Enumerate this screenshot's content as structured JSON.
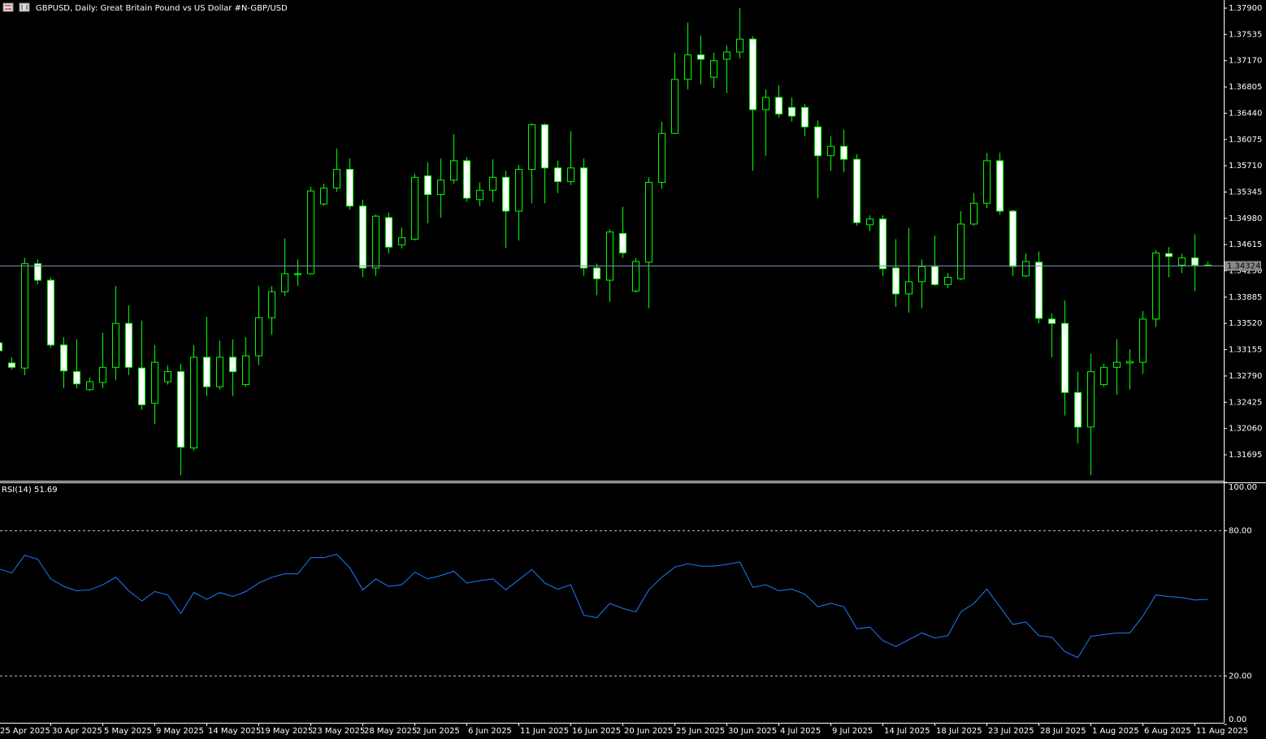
{
  "chart_data": [
    {
      "type": "candlestick",
      "title": "GBPUSD, Daily:  Great Britain Pound vs US Dollar #N-GBP/USD",
      "categories": [
        "25 Apr 2025",
        null,
        null,
        null,
        "30 Apr 2025",
        null,
        null,
        null,
        "5 May 2025",
        null,
        null,
        null,
        "9 May 2025",
        null,
        null,
        null,
        "14 May 2025",
        null,
        null,
        null,
        "19 May 2025",
        null,
        null,
        null,
        "23 May 2025",
        null,
        null,
        null,
        "28 May 2025",
        null,
        null,
        null,
        "2 Jun 2025",
        null,
        null,
        null,
        "6 Jun 2025",
        null,
        null,
        null,
        "11 Jun 2025",
        null,
        null,
        null,
        "16 Jun 2025",
        null,
        null,
        null,
        "20 Jun 2025",
        null,
        null,
        null,
        "25 Jun 2025",
        null,
        null,
        null,
        "30 Jun 2025",
        null,
        null,
        null,
        "4 Jul 2025",
        null,
        null,
        null,
        "9 Jul 2025",
        null,
        null,
        null,
        "14 Jul 2025",
        null,
        null,
        null,
        "18 Jul 2025",
        null,
        null,
        null,
        "23 Jul 2025",
        null,
        null,
        null,
        "28 Jul 2025",
        null,
        null,
        null,
        "1 Aug 2025",
        null,
        null,
        null,
        "6 Aug 2025",
        null,
        null,
        null,
        "11 Aug 2025",
        null
      ],
      "open": [
        1.3325,
        1.3297,
        1.329,
        1.3435,
        1.3412,
        1.3322,
        1.3285,
        1.326,
        1.327,
        1.3291,
        1.3352,
        1.329,
        1.3241,
        1.3271,
        1.3285,
        1.3179,
        1.3305,
        1.3264,
        1.3305,
        1.3267,
        1.3307,
        1.336,
        1.3396,
        1.342,
        1.3421,
        1.3518,
        1.354,
        1.3566,
        1.3515,
        1.3429,
        1.3499,
        1.3461,
        1.3469,
        1.3557,
        1.3531,
        1.3551,
        1.3578,
        1.3524,
        1.3537,
        1.3555,
        1.3508,
        1.3566,
        1.3628,
        1.3568,
        1.3549,
        1.3568,
        1.3429,
        1.3412,
        1.3477,
        1.3397,
        1.3437,
        1.3548,
        1.3616,
        1.3691,
        1.3725,
        1.3694,
        1.3719,
        1.3729,
        1.3747,
        1.3649,
        1.3666,
        1.3652,
        1.3652,
        1.3625,
        1.3585,
        1.3598,
        1.358,
        1.3489,
        1.3497,
        1.3429,
        1.3393,
        1.341,
        1.3431,
        1.3406,
        1.3414,
        1.349,
        1.3519,
        1.3578,
        1.3508,
        1.3418,
        1.3437,
        1.3358,
        1.3352,
        1.3256,
        1.3208,
        1.3267,
        1.3291,
        1.3297,
        1.3298,
        1.3358,
        1.3449,
        1.3433,
        1.3443,
        1.3433
      ],
      "high": [
        1.333,
        1.3305,
        1.3443,
        1.3441,
        1.3416,
        1.3333,
        1.333,
        1.3277,
        1.3339,
        1.3404,
        1.3377,
        1.3356,
        1.3322,
        1.3294,
        1.3296,
        1.3322,
        1.3361,
        1.3328,
        1.333,
        1.3333,
        1.3404,
        1.3404,
        1.347,
        1.3441,
        1.3542,
        1.3546,
        1.3595,
        1.3581,
        1.3524,
        1.3503,
        1.3506,
        1.3485,
        1.356,
        1.3576,
        1.3581,
        1.3615,
        1.3583,
        1.3548,
        1.358,
        1.3564,
        1.3572,
        1.363,
        1.363,
        1.3578,
        1.3619,
        1.3581,
        1.3435,
        1.3483,
        1.3514,
        1.3443,
        1.3555,
        1.3632,
        1.3728,
        1.377,
        1.3752,
        1.3728,
        1.3738,
        1.379,
        1.3751,
        1.3677,
        1.3683,
        1.3666,
        1.3657,
        1.3634,
        1.3612,
        1.3621,
        1.3587,
        1.3502,
        1.3502,
        1.3469,
        1.3485,
        1.3441,
        1.3474,
        1.3422,
        1.3508,
        1.3533,
        1.3589,
        1.3589,
        1.351,
        1.3449,
        1.3452,
        1.3366,
        1.3384,
        1.3285,
        1.331,
        1.3296,
        1.333,
        1.3316,
        1.3369,
        1.3454,
        1.3458,
        1.3449,
        1.3476,
        1.3438
      ],
      "low": [
        1.3309,
        1.3288,
        1.328,
        1.3406,
        1.3318,
        1.3262,
        1.3262,
        1.3258,
        1.3262,
        1.3273,
        1.328,
        1.3232,
        1.3212,
        1.3267,
        1.3141,
        1.3175,
        1.3251,
        1.326,
        1.3251,
        1.3264,
        1.3294,
        1.3336,
        1.339,
        1.3404,
        1.342,
        1.3515,
        1.3535,
        1.351,
        1.3416,
        1.3418,
        1.3449,
        1.3456,
        1.3467,
        1.3491,
        1.3499,
        1.3546,
        1.3521,
        1.3515,
        1.3521,
        1.3457,
        1.3467,
        1.3519,
        1.3519,
        1.3533,
        1.3544,
        1.3418,
        1.3391,
        1.3382,
        1.3443,
        1.3395,
        1.3373,
        1.3539,
        1.3615,
        1.3677,
        1.3684,
        1.3679,
        1.3672,
        1.372,
        1.3564,
        1.3585,
        1.3638,
        1.3632,
        1.3612,
        1.3526,
        1.3564,
        1.3562,
        1.3488,
        1.348,
        1.3418,
        1.3375,
        1.3367,
        1.3373,
        1.3404,
        1.3401,
        1.3412,
        1.3488,
        1.3512,
        1.3503,
        1.3418,
        1.3416,
        1.3352,
        1.3305,
        1.3224,
        1.3185,
        1.3141,
        1.3264,
        1.3253,
        1.326,
        1.3282,
        1.3347,
        1.3416,
        1.3422,
        1.3397,
        1.3431
      ],
      "close": [
        1.3314,
        1.3291,
        1.3435,
        1.3412,
        1.3322,
        1.3286,
        1.3268,
        1.3271,
        1.3291,
        1.3352,
        1.3291,
        1.3239,
        1.3298,
        1.3285,
        1.318,
        1.3305,
        1.3264,
        1.3305,
        1.3285,
        1.3307,
        1.336,
        1.3396,
        1.3421,
        1.3421,
        1.3536,
        1.354,
        1.3566,
        1.3515,
        1.3429,
        1.3501,
        1.3458,
        1.3471,
        1.3555,
        1.3531,
        1.3551,
        1.3578,
        1.3526,
        1.3537,
        1.3555,
        1.3508,
        1.3566,
        1.3628,
        1.3568,
        1.3549,
        1.3568,
        1.3429,
        1.3414,
        1.3479,
        1.345,
        1.3438,
        1.3548,
        1.3616,
        1.3691,
        1.3725,
        1.3719,
        1.3717,
        1.3729,
        1.3747,
        1.3649,
        1.3666,
        1.3643,
        1.364,
        1.3625,
        1.3585,
        1.3598,
        1.358,
        1.3492,
        1.3497,
        1.3428,
        1.3393,
        1.341,
        1.3431,
        1.3406,
        1.3416,
        1.349,
        1.3519,
        1.3578,
        1.3508,
        1.3431,
        1.3438,
        1.3359,
        1.3352,
        1.3256,
        1.3208,
        1.3285,
        1.3291,
        1.3298,
        1.3299,
        1.3358,
        1.345,
        1.3445,
        1.3443,
        1.3433,
        1.34324
      ],
      "current_price": 1.34324,
      "ylim": [
        1.31334,
        1.38013
      ],
      "yticks": [
        {
          "value": 1.379,
          "label": "1.37900"
        },
        1.37535,
        {
          "value": 1.3717,
          "label": "1.37170"
        },
        1.36805,
        {
          "value": 1.3644,
          "label": "1.36440"
        },
        1.36075,
        {
          "value": 1.3571,
          "label": "1.35710"
        },
        1.35345,
        {
          "value": 1.3498,
          "label": "1.34980"
        },
        1.34615,
        {
          "value": 1.3425,
          "label": "1.34250"
        },
        1.33885,
        {
          "value": 1.3352,
          "label": "1.33520"
        },
        1.33155,
        {
          "value": 1.3279,
          "label": "1.32790"
        },
        1.32425,
        {
          "value": 1.3206,
          "label": "1.32060"
        },
        1.31695
      ],
      "up_color": "#000000",
      "down_color": "#ffffff",
      "wick_color": "#00ff00",
      "price_line_color": "#7d8bb8"
    },
    {
      "type": "line",
      "title": "RSI(14) 51.69",
      "values": [
        64.3,
        62.6,
        69.9,
        68.2,
        60.1,
        57.0,
        55.2,
        55.6,
        57.7,
        60.8,
        55.2,
        51.0,
        54.9,
        53.5,
        45.8,
        54.5,
        51.7,
        54.5,
        52.8,
        54.9,
        58.4,
        60.8,
        62.2,
        62.2,
        68.9,
        68.9,
        70.3,
        64.7,
        55.6,
        60.1,
        57.0,
        57.7,
        62.9,
        60.1,
        61.5,
        63.3,
        58.4,
        59.4,
        60.1,
        55.6,
        59.8,
        64.0,
        58.4,
        55.9,
        57.7,
        45.1,
        44.1,
        50.0,
        47.9,
        46.5,
        55.6,
        60.8,
        65.0,
        66.4,
        65.4,
        65.4,
        66.1,
        67.1,
        56.6,
        57.7,
        55.2,
        55.9,
        53.8,
        48.6,
        50.0,
        48.6,
        39.5,
        40.2,
        34.6,
        32.2,
        35.0,
        37.8,
        35.7,
        36.7,
        46.5,
        50.0,
        55.9,
        48.6,
        41.3,
        42.3,
        36.7,
        36.0,
        30.1,
        27.6,
        36.4,
        37.1,
        37.8,
        37.8,
        44.8,
        53.5,
        52.8,
        52.4,
        51.4,
        51.69
      ],
      "color": "#1e7bff",
      "ylim": [
        0,
        100
      ],
      "yticks": [
        {
          "value": 100,
          "label": "100.00"
        },
        {
          "value": 80,
          "label": "80.00"
        },
        {
          "value": 20,
          "label": "20.00"
        },
        {
          "value": 0,
          "label": "0.00"
        }
      ]
    }
  ]
}
